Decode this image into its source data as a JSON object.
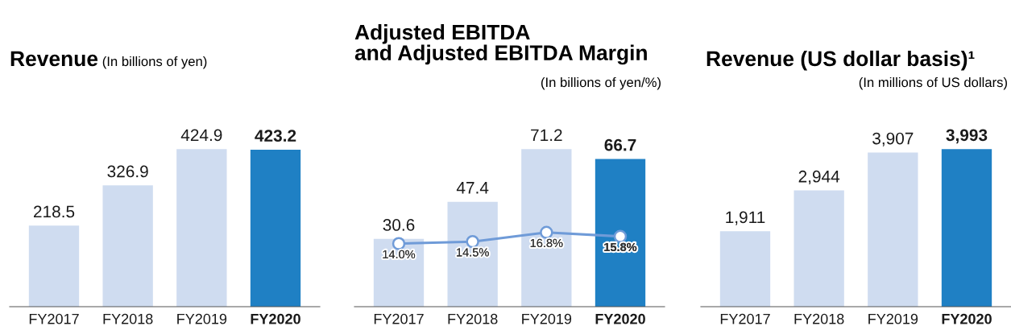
{
  "chart_data": [
    {
      "type": "bar",
      "title": "Revenue",
      "subtitle": "(In billions of yen)",
      "categories": [
        "FY2017",
        "FY2018",
        "FY2019",
        "FY2020"
      ],
      "values": [
        218.5,
        326.9,
        424.9,
        423.2
      ],
      "colors": [
        "#cfdcf0",
        "#cfdcf0",
        "#cfdcf0",
        "#1f80c4"
      ],
      "data_labels": true
    },
    {
      "type": "bar",
      "title": "Adjusted EBITDA\nand Adjusted EBITDA Margin",
      "subtitle": "(In billions of yen/%)",
      "categories": [
        "FY2017",
        "FY2018",
        "FY2019",
        "FY2020"
      ],
      "series": [
        {
          "type": "bar",
          "values": [
            30.6,
            47.4,
            71.2,
            66.7
          ],
          "colors": [
            "#cfdcf0",
            "#cfdcf0",
            "#cfdcf0",
            "#1f80c4"
          ]
        },
        {
          "type": "line",
          "axis": "y2",
          "color": "#6f9bd8",
          "marker": "circle",
          "value_labels": [
            "14.0%",
            "14.5%",
            "16.8%",
            "15.8%"
          ],
          "values": [
            14.0,
            14.5,
            16.8,
            15.8
          ]
        }
      ],
      "data_labels": true
    },
    {
      "type": "bar",
      "title": "Revenue (US dollar basis)¹",
      "subtitle": "(In millions of US dollars)",
      "categories": [
        "FY2017",
        "FY2018",
        "FY2019",
        "FY2020"
      ],
      "values": [
        1911,
        2944,
        3907,
        3993
      ],
      "value_labels": [
        "1,911",
        "2,944",
        "3,907",
        "3,993"
      ],
      "colors": [
        "#cfdcf0",
        "#cfdcf0",
        "#cfdcf0",
        "#1f80c4"
      ],
      "data_labels": true
    }
  ]
}
